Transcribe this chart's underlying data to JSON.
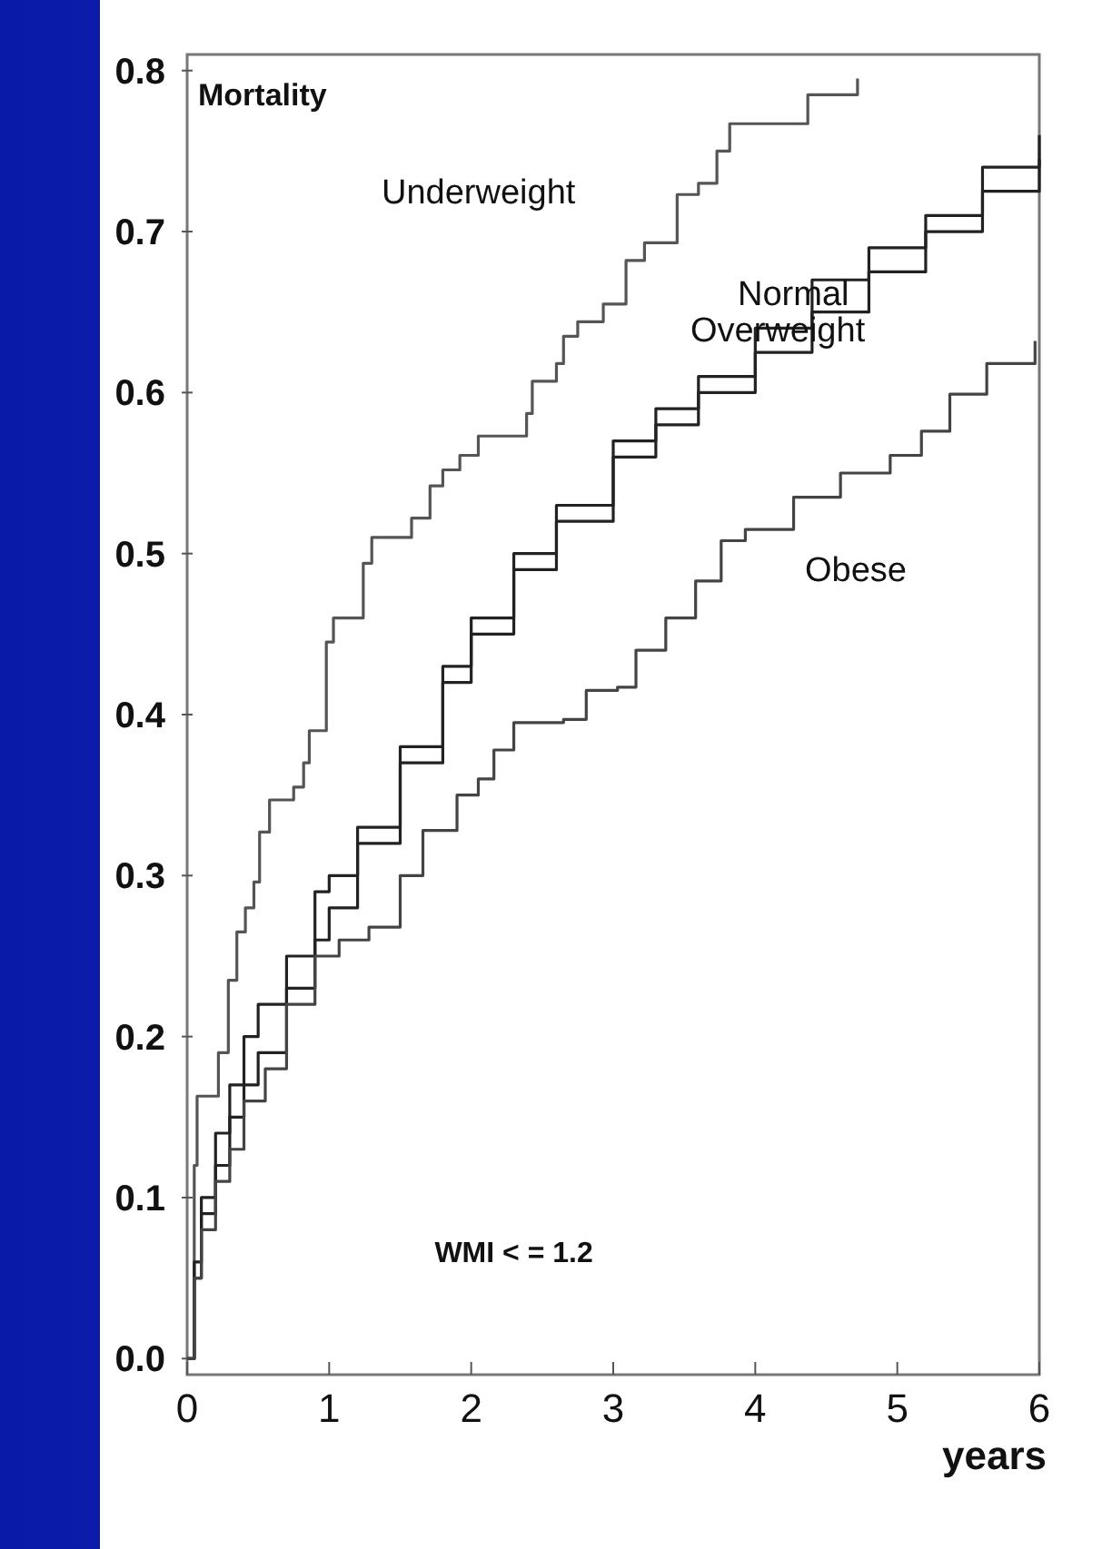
{
  "chart_data": {
    "type": "step",
    "ylabel": "Mortality",
    "xlabel": "years",
    "annotations": [
      "WMI < = 1.2"
    ],
    "xlim": [
      0,
      6
    ],
    "ylim": [
      -0.01,
      0.81
    ],
    "xticks": [
      0,
      1,
      2,
      3,
      4,
      5,
      6
    ],
    "yticks": [
      {
        "value": 0,
        "label": "0.0"
      },
      {
        "value": 0.1,
        "label": "0.1"
      },
      {
        "value": 0.2,
        "label": "0.2"
      },
      {
        "value": 0.3,
        "label": "0.3"
      },
      {
        "value": 0.4,
        "label": "0.4"
      },
      {
        "value": 0.5,
        "label": "0.5"
      },
      {
        "value": 0.6,
        "label": "0.6"
      },
      {
        "value": 0.7,
        "label": "0.7"
      },
      {
        "value": 0.8,
        "label": "0.8"
      }
    ],
    "grid": false,
    "line_style": "solid",
    "marker": "none",
    "series": [
      {
        "name": "Underweight",
        "color": "#555555",
        "x": [
          0,
          0.05,
          0.07,
          0.22,
          0.29,
          0.35,
          0.41,
          0.47,
          0.51,
          0.58,
          0.75,
          0.82,
          0.86,
          0.98,
          1.03,
          1.24,
          1.3,
          1.37,
          1.58,
          1.71,
          1.8,
          1.92,
          2.05,
          2.16,
          2.39,
          2.43,
          2.6,
          2.65,
          2.75,
          2.93,
          3.09,
          3.22,
          3.45,
          3.6,
          3.73,
          3.82,
          3.93,
          4.37,
          4.4,
          4.72
        ],
        "values": [
          0,
          0.12,
          0.163,
          0.19,
          0.235,
          0.265,
          0.28,
          0.296,
          0.327,
          0.347,
          0.355,
          0.37,
          0.39,
          0.445,
          0.46,
          0.494,
          0.51,
          0.51,
          0.522,
          0.542,
          0.552,
          0.561,
          0.573,
          0.573,
          0.587,
          0.607,
          0.618,
          0.635,
          0.644,
          0.655,
          0.682,
          0.693,
          0.723,
          0.73,
          0.75,
          0.767,
          0.767,
          0.785,
          0.785,
          0.795
        ]
      },
      {
        "name": "Normal",
        "color": "#222222",
        "x": [
          0,
          0.05,
          0.1,
          0.2,
          0.3,
          0.4,
          0.5,
          0.7,
          0.9,
          1.0,
          1.2,
          1.5,
          1.8,
          2.0,
          2.3,
          2.6,
          3.0,
          3.3,
          3.6,
          4.0,
          4.4,
          4.8,
          5.2,
          5.6,
          6.0
        ],
        "values": [
          0,
          0.06,
          0.1,
          0.14,
          0.17,
          0.2,
          0.22,
          0.25,
          0.29,
          0.3,
          0.33,
          0.38,
          0.43,
          0.46,
          0.5,
          0.53,
          0.57,
          0.59,
          0.61,
          0.64,
          0.67,
          0.69,
          0.71,
          0.74,
          0.76
        ]
      },
      {
        "name": "Overweight",
        "color": "#222222",
        "x": [
          0,
          0.05,
          0.1,
          0.2,
          0.3,
          0.4,
          0.5,
          0.7,
          0.9,
          1.0,
          1.2,
          1.5,
          1.8,
          2.0,
          2.3,
          2.6,
          3.0,
          3.3,
          3.6,
          4.0,
          4.4,
          4.8,
          5.2,
          5.6,
          6.0
        ],
        "values": [
          0,
          0.05,
          0.09,
          0.12,
          0.15,
          0.17,
          0.19,
          0.23,
          0.26,
          0.28,
          0.32,
          0.37,
          0.42,
          0.45,
          0.49,
          0.52,
          0.56,
          0.58,
          0.6,
          0.625,
          0.65,
          0.675,
          0.7,
          0.725,
          0.745
        ]
      },
      {
        "name": "Obese",
        "color": "#444444",
        "x": [
          0,
          0.05,
          0.1,
          0.2,
          0.3,
          0.4,
          0.55,
          0.7,
          0.9,
          1.07,
          1.28,
          1.5,
          1.66,
          1.9,
          2.05,
          2.16,
          2.3,
          2.65,
          2.81,
          3.03,
          3.16,
          3.37,
          3.58,
          3.76,
          3.93,
          4.27,
          4.6,
          4.95,
          5.17,
          5.37,
          5.63,
          5.97
        ],
        "values": [
          0,
          0.05,
          0.08,
          0.11,
          0.13,
          0.16,
          0.18,
          0.22,
          0.25,
          0.26,
          0.268,
          0.3,
          0.328,
          0.35,
          0.36,
          0.378,
          0.395,
          0.397,
          0.415,
          0.417,
          0.44,
          0.46,
          0.483,
          0.508,
          0.515,
          0.535,
          0.55,
          0.561,
          0.576,
          0.599,
          0.618,
          0.632
        ]
      }
    ]
  }
}
